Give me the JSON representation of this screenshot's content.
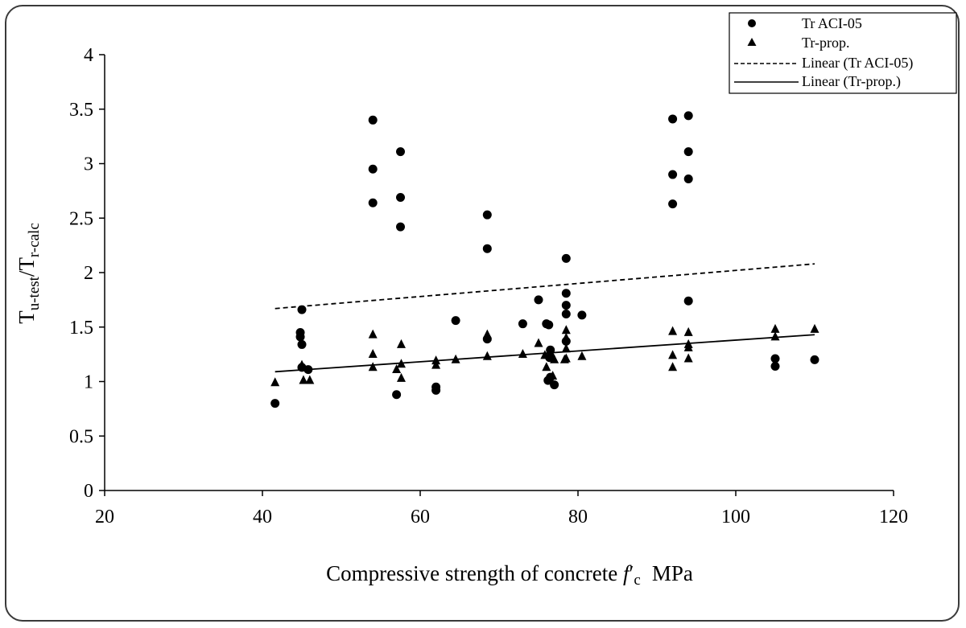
{
  "chart_data": {
    "type": "scatter",
    "title": "",
    "xlabel": {
      "main": "Compressive strength of concrete ",
      "f": "f",
      "prime": "′",
      "c": "c",
      "unit": "MPa"
    },
    "ylabel": {
      "t1": "T",
      "sub1": "u-test",
      "slash": "/T",
      "sub2": "r-calc"
    },
    "xlim": [
      20,
      120
    ],
    "ylim": [
      0,
      4
    ],
    "xticks": [
      20,
      40,
      60,
      80,
      100,
      120
    ],
    "yticks": [
      0,
      0.5,
      1,
      1.5,
      2,
      2.5,
      3,
      3.5,
      4
    ],
    "ytick_labels": [
      "0",
      "0.5",
      "1",
      "1.5",
      "2",
      "2.5",
      "3",
      "3.5",
      "4"
    ],
    "grid": false,
    "legend_position": "top-right",
    "series": [
      {
        "name": "Tr ACI-05",
        "marker": "circle",
        "color": "#000000",
        "points": [
          [
            41.6,
            0.8
          ],
          [
            45,
            1.66
          ],
          [
            44.8,
            1.45
          ],
          [
            44.8,
            1.41
          ],
          [
            45,
            1.34
          ],
          [
            45.8,
            1.11
          ],
          [
            45,
            1.13
          ],
          [
            54,
            3.4
          ],
          [
            54,
            2.95
          ],
          [
            54,
            2.64
          ],
          [
            57.5,
            3.11
          ],
          [
            57.5,
            2.69
          ],
          [
            57.5,
            2.42
          ],
          [
            57,
            0.88
          ],
          [
            62,
            0.95
          ],
          [
            62,
            0.92
          ],
          [
            64.5,
            1.56
          ],
          [
            68.5,
            2.53
          ],
          [
            68.5,
            2.22
          ],
          [
            68.5,
            1.39
          ],
          [
            73,
            1.53
          ],
          [
            75,
            1.75
          ],
          [
            76,
            1.53
          ],
          [
            76.3,
            1.52
          ],
          [
            76.5,
            1.29
          ],
          [
            76.4,
            1.22
          ],
          [
            76.5,
            1.04
          ],
          [
            76.2,
            1.01
          ],
          [
            77,
            0.97
          ],
          [
            78.5,
            2.13
          ],
          [
            78.5,
            1.81
          ],
          [
            78.5,
            1.7
          ],
          [
            78.5,
            1.62
          ],
          [
            78.5,
            1.37
          ],
          [
            80.5,
            1.61
          ],
          [
            92,
            3.41
          ],
          [
            92,
            2.9
          ],
          [
            92,
            2.63
          ],
          [
            94,
            3.44
          ],
          [
            94,
            3.11
          ],
          [
            94,
            2.86
          ],
          [
            94,
            1.74
          ],
          [
            105,
            1.21
          ],
          [
            105,
            1.14
          ],
          [
            110,
            1.2
          ]
        ]
      },
      {
        "name": "Tr-prop.",
        "marker": "triangle",
        "color": "#000000",
        "points": [
          [
            41.6,
            0.99
          ],
          [
            45,
            1.15
          ],
          [
            45.2,
            1.01
          ],
          [
            46,
            1.01
          ],
          [
            54,
            1.43
          ],
          [
            54,
            1.25
          ],
          [
            54,
            1.13
          ],
          [
            57,
            1.11
          ],
          [
            57.6,
            1.34
          ],
          [
            57.6,
            1.16
          ],
          [
            57.6,
            1.03
          ],
          [
            62,
            1.19
          ],
          [
            62,
            1.15
          ],
          [
            64.5,
            1.2
          ],
          [
            68.5,
            1.43
          ],
          [
            68.5,
            1.41
          ],
          [
            68.5,
            1.23
          ],
          [
            73,
            1.25
          ],
          [
            75,
            1.35
          ],
          [
            75.8,
            1.24
          ],
          [
            76,
            1.13
          ],
          [
            76.5,
            1.27
          ],
          [
            77,
            1.2
          ],
          [
            76.8,
            1.05
          ],
          [
            78.5,
            1.47
          ],
          [
            78.5,
            1.4
          ],
          [
            78.5,
            1.3
          ],
          [
            78.5,
            1.21
          ],
          [
            78.3,
            1.2
          ],
          [
            80.5,
            1.23
          ],
          [
            92,
            1.46
          ],
          [
            92,
            1.24
          ],
          [
            92,
            1.13
          ],
          [
            94,
            1.45
          ],
          [
            94,
            1.34
          ],
          [
            94,
            1.31
          ],
          [
            94,
            1.21
          ],
          [
            105,
            1.48
          ],
          [
            105,
            1.41
          ],
          [
            110,
            1.48
          ]
        ]
      },
      {
        "name": "Linear (Tr ACI-05)",
        "type": "line",
        "style": "dashed",
        "color": "#000000",
        "x": [
          41.6,
          110
        ],
        "y": [
          1.67,
          2.08
        ]
      },
      {
        "name": "Linear (Tr-prop.)",
        "type": "line",
        "style": "solid",
        "color": "#000000",
        "x": [
          41.6,
          110
        ],
        "y": [
          1.09,
          1.43
        ]
      }
    ]
  }
}
